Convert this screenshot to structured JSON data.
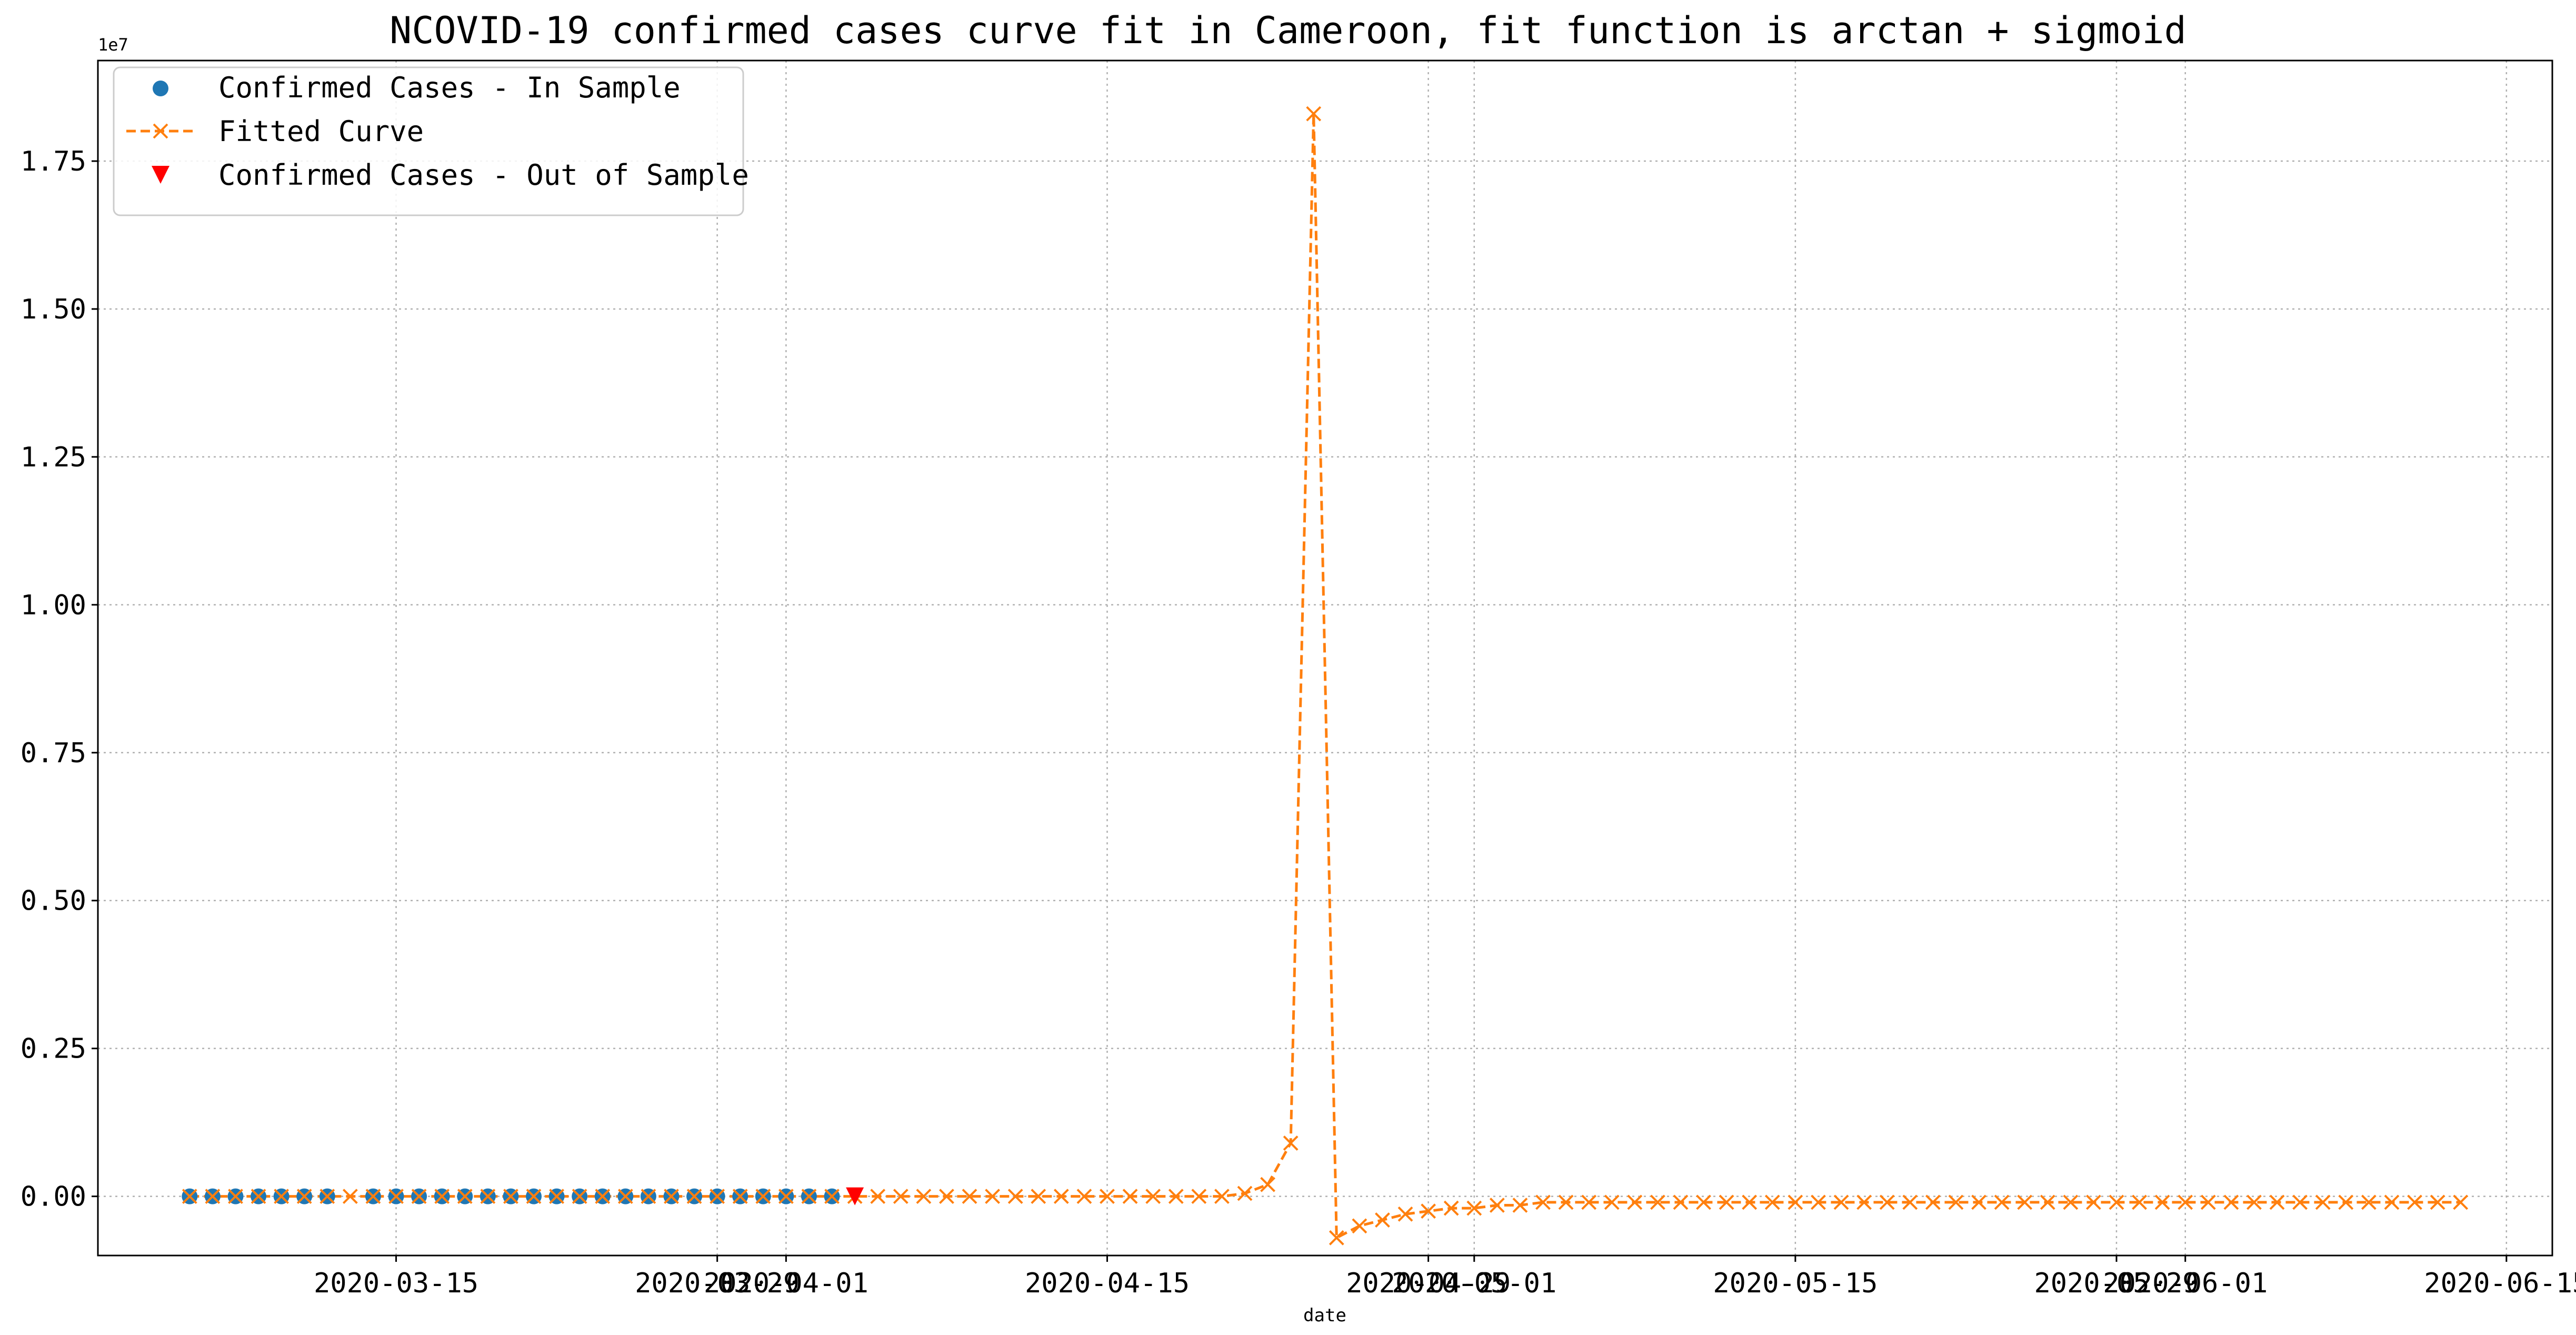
{
  "chart_data": {
    "type": "line",
    "title": "NCOVID-19 confirmed cases curve fit in Cameroon, fit function is arctan + sigmoid",
    "xlabel": "date",
    "ylabel": "",
    "y_offset_label": "1e7",
    "grid": true,
    "legend_position": "upper-left",
    "xlim": [
      "2020-03-02",
      "2020-06-17"
    ],
    "ylim": [
      -0.1,
      1.92
    ],
    "x_ticks": [
      {
        "date": "2020-03-15",
        "label": "2020-03-15"
      },
      {
        "date": "2020-03-29",
        "label": "2020-03-29"
      },
      {
        "date": "2020-04-01",
        "label": "2020-04-01"
      },
      {
        "date": "2020-04-15",
        "label": "2020-04-15"
      },
      {
        "date": "2020-04-29",
        "label": "2020-04-29"
      },
      {
        "date": "2020-05-01",
        "label": "2020-05-01"
      },
      {
        "date": "2020-05-15",
        "label": "2020-05-15"
      },
      {
        "date": "2020-05-29",
        "label": "2020-05-29"
      },
      {
        "date": "2020-06-01",
        "label": "2020-06-01"
      },
      {
        "date": "2020-06-15",
        "label": "2020-06-15"
      }
    ],
    "y_ticks": [
      {
        "value": 0.0,
        "label": "0.00"
      },
      {
        "value": 0.25,
        "label": "0.25"
      },
      {
        "value": 0.5,
        "label": "0.50"
      },
      {
        "value": 0.75,
        "label": "0.75"
      },
      {
        "value": 1.0,
        "label": "1.00"
      },
      {
        "value": 1.25,
        "label": "1.25"
      },
      {
        "value": 1.5,
        "label": "1.50"
      },
      {
        "value": 1.75,
        "label": "1.75"
      }
    ],
    "series": [
      {
        "name": "Confirmed Cases - In Sample",
        "style": "markers",
        "marker": "circle",
        "color": "#1f77b4",
        "x": [
          "2020-03-06",
          "2020-03-07",
          "2020-03-08",
          "2020-03-09",
          "2020-03-10",
          "2020-03-11",
          "2020-03-12",
          "2020-03-14",
          "2020-03-15",
          "2020-03-16",
          "2020-03-17",
          "2020-03-18",
          "2020-03-19",
          "2020-03-20",
          "2020-03-21",
          "2020-03-22",
          "2020-03-23",
          "2020-03-24",
          "2020-03-25",
          "2020-03-26",
          "2020-03-27",
          "2020-03-28",
          "2020-03-29",
          "2020-03-30",
          "2020-03-31",
          "2020-04-01",
          "2020-04-02",
          "2020-04-03"
        ],
        "y": [
          0,
          0,
          0,
          0,
          0,
          0,
          0,
          0,
          0,
          0,
          0,
          0,
          0,
          0,
          0,
          0,
          0,
          0,
          0,
          0,
          0,
          0,
          0,
          0,
          0,
          0,
          0,
          0
        ]
      },
      {
        "name": "Fitted Curve",
        "style": "dashed-line-x-markers",
        "marker": "x",
        "color": "#ff7f0e",
        "x_start": "2020-03-06",
        "x_end": "2020-06-13",
        "y": [
          0,
          0,
          0,
          0,
          0,
          0,
          0,
          0,
          0,
          0,
          0,
          0,
          0,
          0,
          0,
          0,
          0,
          0,
          0,
          0,
          0,
          0,
          0,
          0,
          0,
          0,
          0,
          0,
          0,
          0,
          0,
          0,
          0,
          0,
          0,
          0,
          0,
          0,
          0,
          0,
          0,
          0,
          0,
          0,
          0,
          0,
          0.005,
          0.02,
          0.09,
          1.83,
          -0.07,
          -0.05,
          -0.04,
          -0.03,
          -0.025,
          -0.02,
          -0.02,
          -0.015,
          -0.015,
          -0.01,
          -0.01,
          -0.01,
          -0.01,
          -0.01,
          -0.01,
          -0.01,
          -0.01,
          -0.01,
          -0.01,
          -0.01,
          -0.01,
          -0.01,
          -0.01,
          -0.01,
          -0.01,
          -0.01,
          -0.01,
          -0.01,
          -0.01,
          -0.01,
          -0.01,
          -0.01,
          -0.01,
          -0.01,
          -0.01,
          -0.01,
          -0.01,
          -0.01,
          -0.01,
          -0.01,
          -0.01,
          -0.01,
          -0.01,
          -0.01,
          -0.01,
          -0.01,
          -0.01,
          -0.01,
          -0.01,
          -0.01
        ]
      },
      {
        "name": "Confirmed Cases - Out of Sample",
        "style": "markers",
        "marker": "triangle-down",
        "color": "#ff0000",
        "x": [
          "2020-04-04"
        ],
        "y": [
          0
        ]
      }
    ]
  }
}
